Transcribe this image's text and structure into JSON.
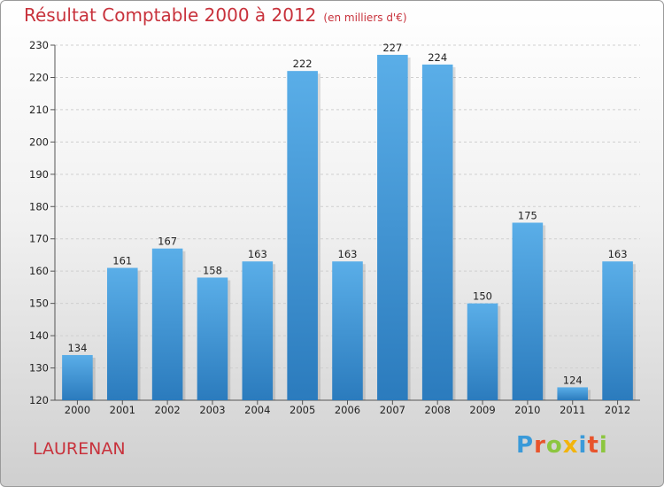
{
  "title": "Résultat Comptable 2000 à 2012",
  "subtitle": "(en milliers d'€)",
  "location": "LAURENAN",
  "logo": {
    "text": "Proxiti",
    "letters": [
      {
        "ch": "P",
        "color": "#3a9ad9"
      },
      {
        "ch": "r",
        "color": "#e8542c"
      },
      {
        "ch": "o",
        "color": "#8cc63f"
      },
      {
        "ch": "x",
        "color": "#f2b40c"
      },
      {
        "ch": "i",
        "color": "#3a9ad9"
      },
      {
        "ch": "t",
        "color": "#e8542c"
      },
      {
        "ch": "i",
        "color": "#8cc63f"
      }
    ]
  },
  "colors": {
    "bar_top": "#5aaee8",
    "bar_bottom": "#2b7bbd",
    "title": "#c8323c"
  },
  "chart_data": {
    "type": "bar",
    "title": "Résultat Comptable 2000 à 2012",
    "ylabel": "(en milliers d'€)",
    "xlabel": "",
    "categories": [
      "2000",
      "2001",
      "2002",
      "2003",
      "2004",
      "2005",
      "2006",
      "2007",
      "2008",
      "2009",
      "2010",
      "2011",
      "2012"
    ],
    "values": [
      134,
      161,
      167,
      158,
      163,
      222,
      163,
      227,
      224,
      150,
      175,
      124,
      163
    ],
    "ylim": [
      120,
      230
    ],
    "yticks": [
      120,
      130,
      140,
      150,
      160,
      170,
      180,
      190,
      200,
      210,
      220,
      230
    ],
    "grid": true
  }
}
